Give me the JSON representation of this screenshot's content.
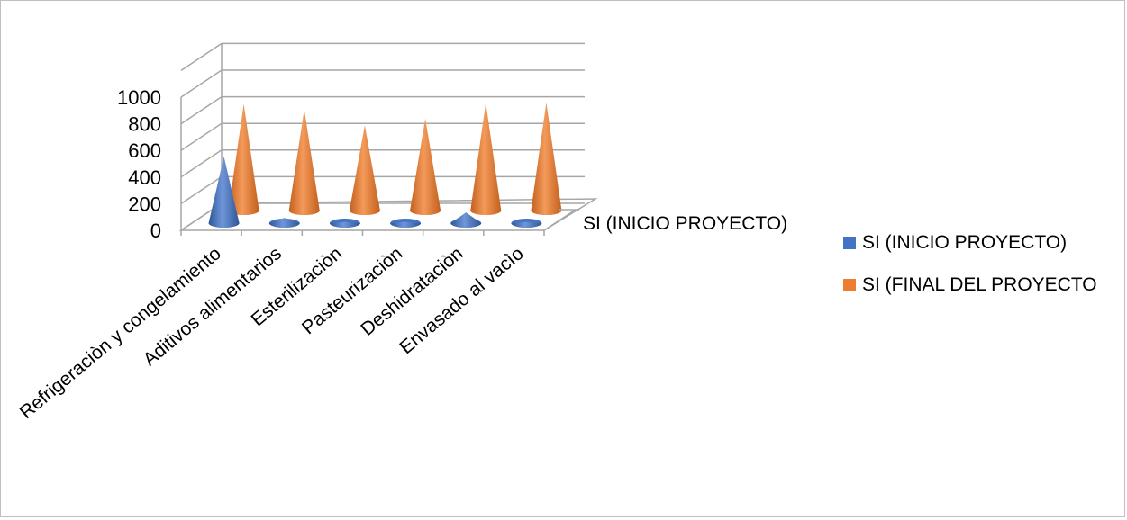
{
  "chart_data": {
    "type": "bar",
    "style": "3d-cone",
    "categories": [
      "Refrigeraciòn y congelamiento",
      "Aditivos alimentarios",
      "Esterilizaciòn",
      "Pasteurizaciòn",
      "Deshidrataciòn",
      "Envasado al vacìo"
    ],
    "series": [
      {
        "name": "SI (INICIO PROYECTO)",
        "color": "#4472C4",
        "values": [
          500,
          40,
          10,
          10,
          80,
          10
        ]
      },
      {
        "name": "SI (FINAL DEL PROYECTO",
        "color": "#ED7D31",
        "values": [
          800,
          760,
          640,
          690,
          810,
          810
        ]
      }
    ],
    "ylim": [
      0,
      1000
    ],
    "yticks": [
      "0",
      "200",
      "400",
      "600",
      "800",
      "1000"
    ],
    "depth_axis_label": "SI (INICIO PROYECTO)",
    "grid": true,
    "legend": "right"
  }
}
